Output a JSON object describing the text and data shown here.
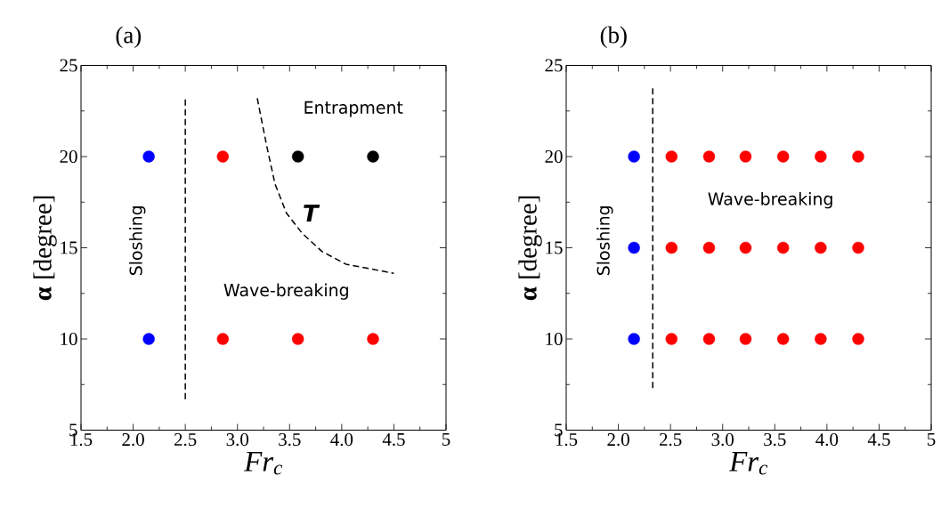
{
  "chart_data": [
    {
      "type": "scatter",
      "title": "(a)",
      "xlabel": "Fr$_{c}$",
      "ylabel": "**α** [degree]",
      "xlim": [
        1.5,
        5
      ],
      "ylim": [
        5,
        25
      ],
      "xticks": [
        1.5,
        {
          "value": 2,
          "label": "2.0"
        },
        2.5,
        {
          "value": 3,
          "label": "3.0"
        },
        3.5,
        {
          "value": 4,
          "label": "4.0"
        },
        4.5,
        5
      ],
      "yticks": [
        5,
        10,
        15,
        20,
        25
      ],
      "annotations": [
        "Entrapment",
        "Wave-breaking",
        "Sloshing",
        "T"
      ],
      "ref_lines": [
        {
          "axis": "x",
          "value": 2.5,
          "color": "#000000",
          "line_style": "dashed"
        }
      ],
      "series": [
        {
          "type": "line",
          "line_style": "dashed",
          "marker": "none",
          "color": "#000000",
          "x": [
            3.19,
            3.28,
            3.36,
            3.47,
            3.62,
            3.81,
            4.04,
            4.5
          ],
          "values": [
            23.2,
            20.6,
            18.5,
            16.9,
            15.8,
            14.8,
            14.1,
            13.6
          ]
        },
        {
          "color": "#0000ff",
          "marker": "circle",
          "x": [
            2.15,
            2.15
          ],
          "values": [
            20,
            10
          ]
        },
        {
          "color": "#ff0000",
          "marker": "circle",
          "x": [
            2.86,
            2.86,
            3.58,
            4.3
          ],
          "values": [
            20,
            10,
            10,
            10
          ]
        },
        {
          "color": "#000000",
          "marker": "circle",
          "x": [
            3.58,
            4.3
          ],
          "values": [
            20,
            20
          ]
        }
      ]
    },
    {
      "type": "scatter",
      "title": "(b)",
      "xlabel": "Fr$_{c}$",
      "ylabel": "**α** [degree]",
      "xlim": [
        1.5,
        5
      ],
      "ylim": [
        5,
        25
      ],
      "xticks": [
        1.5,
        {
          "value": 2,
          "label": "2.0"
        },
        2.5,
        {
          "value": 3,
          "label": "3.0"
        },
        3.5,
        {
          "value": 4,
          "label": "4.0"
        },
        4.5,
        5
      ],
      "yticks": [
        5,
        10,
        15,
        20,
        25
      ],
      "annotations": [
        "Sloshing",
        "Wave-breaking"
      ],
      "series": [
        {
          "color": "#0000ff",
          "marker": "circle",
          "x": [
            2.15,
            2.15,
            2.15
          ],
          "values": [
            20,
            15,
            10
          ]
        },
        {
          "color": "#ff0000",
          "marker": "circle",
          "x": [
            2.51,
            2.87,
            3.22,
            3.58,
            3.94,
            4.3,
            2.51,
            2.87,
            3.22,
            3.58,
            3.94,
            4.3,
            2.51,
            2.87,
            3.22,
            3.58,
            3.94,
            4.3
          ],
          "values": [
            20,
            20,
            20,
            20,
            20,
            20,
            15,
            15,
            15,
            15,
            15,
            15,
            10,
            10,
            10,
            10,
            10,
            10
          ]
        },
        {
          "type": "line",
          "line_style": "dashed",
          "marker": "none",
          "color": "#000000",
          "x": [
            2.33,
            2.33
          ],
          "values": [
            7.3,
            23.9
          ]
        }
      ]
    }
  ]
}
